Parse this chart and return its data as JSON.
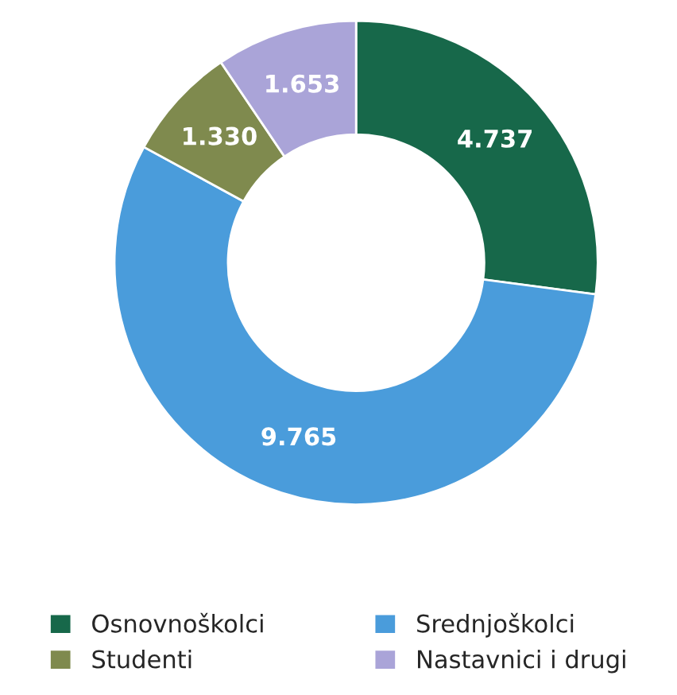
{
  "chart_data": {
    "type": "donut",
    "categories": [
      "Osnovnoškolci",
      "Srednjoškolci",
      "Studenti",
      "Nastavnici i drugi"
    ],
    "values": [
      4737,
      9765,
      1330,
      1653
    ],
    "value_labels": [
      "4.737",
      "9.765",
      "1.330",
      "1.653"
    ],
    "colors": [
      "#17684a",
      "#4a9cdb",
      "#7f8a4e",
      "#aaa4d8"
    ],
    "legend": "bottom"
  }
}
